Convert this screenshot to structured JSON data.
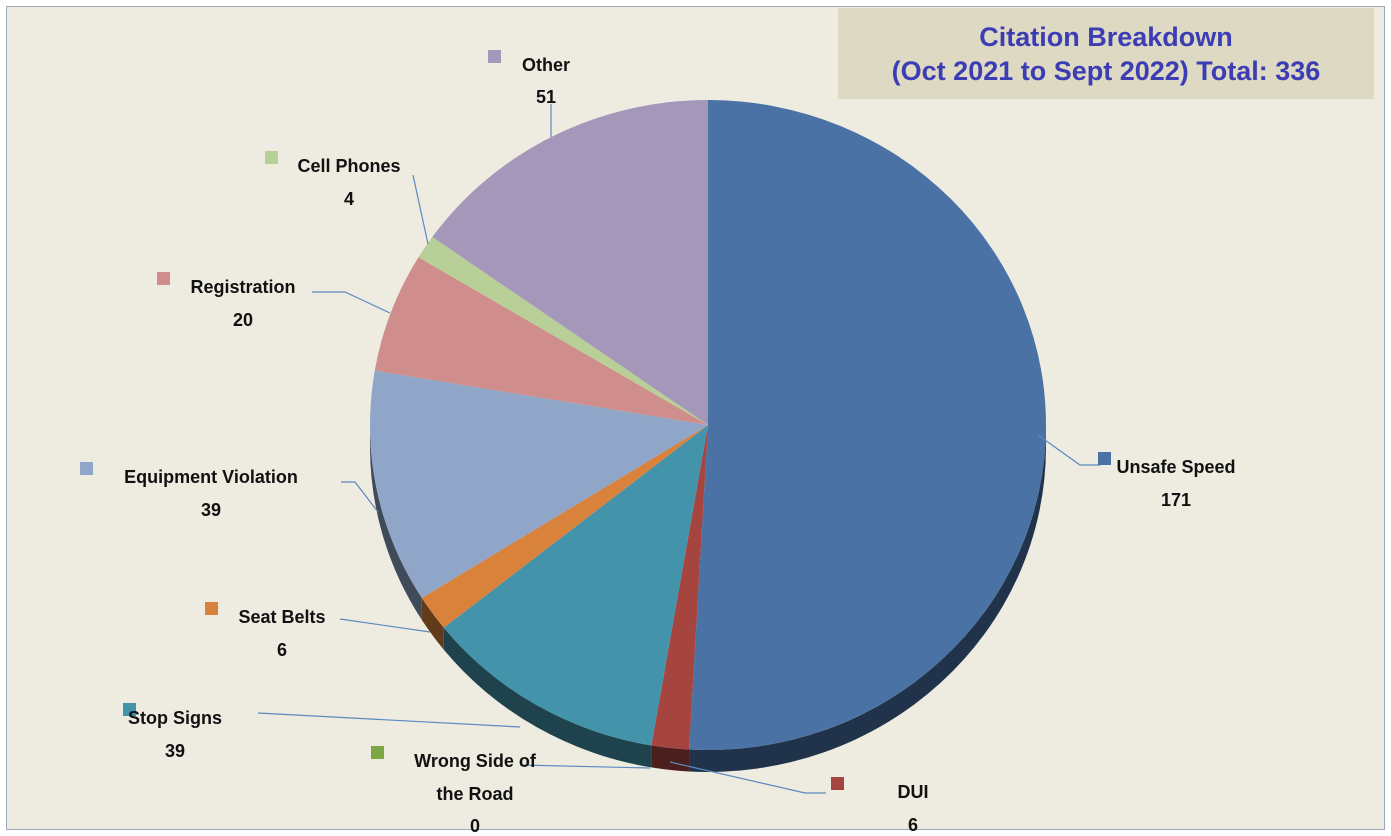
{
  "chart_data": {
    "type": "pie",
    "title": "Citation Breakdown",
    "subtitle": "(Oct 2021 to Sept 2022) Total: 336",
    "slices": [
      {
        "name": "Unsafe Speed",
        "value": 171,
        "color": "#4a72a5"
      },
      {
        "name": "DUI",
        "value": 6,
        "color": "#a64440"
      },
      {
        "name": "Wrong Side of the Road",
        "value": 0,
        "color": "#7ea645"
      },
      {
        "name": "Stop Signs",
        "value": 39,
        "color": "#4394ab"
      },
      {
        "name": "Seat Belts",
        "value": 6,
        "color": "#d9823c"
      },
      {
        "name": "Equipment Violation",
        "value": 39,
        "color": "#8fa6c9"
      },
      {
        "name": "Registration",
        "value": 20,
        "color": "#cf8e8c"
      },
      {
        "name": "Cell Phones",
        "value": 4,
        "color": "#b9cf98"
      },
      {
        "name": "Other",
        "value": 51,
        "color": "#a497ba"
      }
    ]
  }
}
